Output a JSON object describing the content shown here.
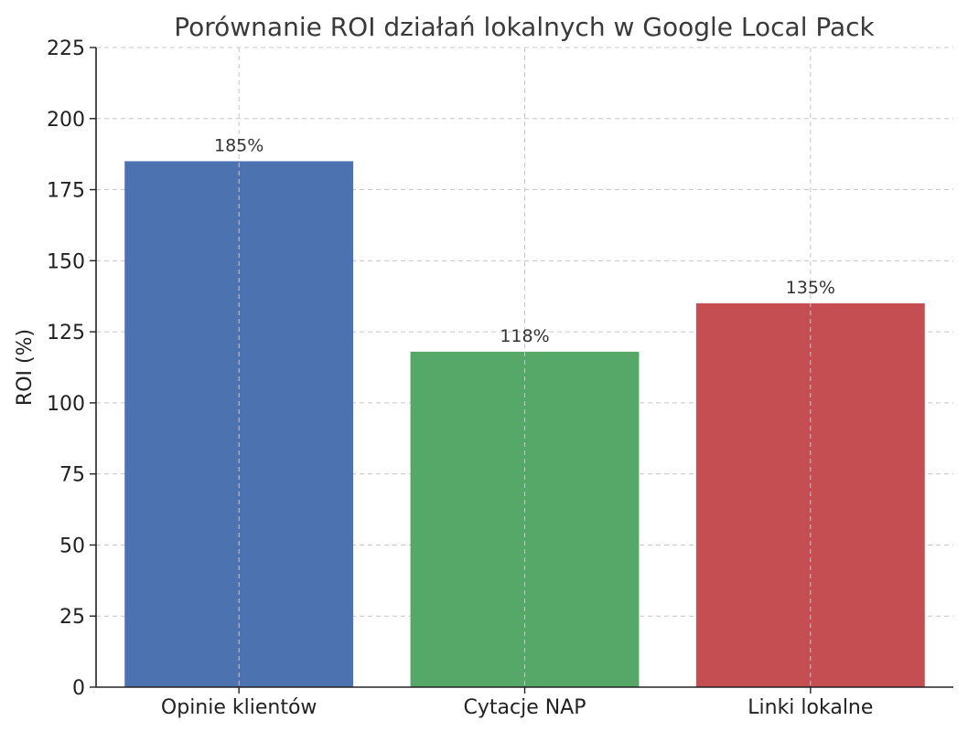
{
  "chart_data": {
    "type": "bar",
    "title": "Porównanie ROI działań lokalnych w Google Local Pack",
    "xlabel": "",
    "ylabel": "ROI (%)",
    "categories": [
      "Opinie klientów",
      "Cytacje NAP",
      "Linki lokalne"
    ],
    "values": [
      185,
      118,
      135
    ],
    "value_labels": [
      "185%",
      "118%",
      "135%"
    ],
    "colors": [
      "#4c72b0",
      "#55a868",
      "#c44e52"
    ],
    "ylim": [
      0,
      225
    ],
    "yticks": [
      0,
      25,
      50,
      75,
      100,
      125,
      150,
      175,
      200,
      225
    ],
    "grid": true,
    "legend": null
  }
}
